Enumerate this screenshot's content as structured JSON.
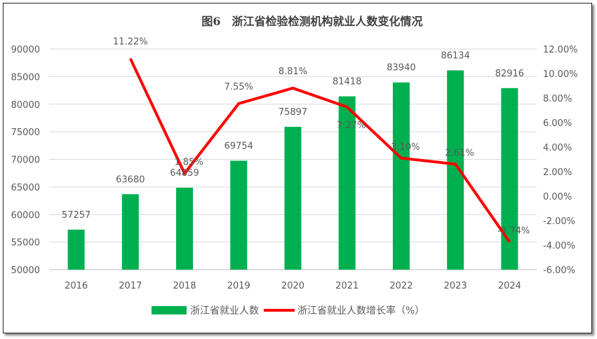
{
  "chart_data": {
    "type": "bar+line",
    "title": "图6　浙江省检验检测机构就业人数变化情况",
    "categories": [
      "2016",
      "2017",
      "2018",
      "2019",
      "2020",
      "2021",
      "2022",
      "2023",
      "2024"
    ],
    "series": [
      {
        "name": "浙江省就业人数",
        "type": "bar",
        "axis": "left",
        "color": "#00B050",
        "values": [
          57257,
          63680,
          64859,
          69754,
          75897,
          81418,
          83940,
          86134,
          82916
        ],
        "labels": [
          "57257",
          "63680",
          "64859",
          "69754",
          "75897",
          "81418",
          "83940",
          "86134",
          "82916"
        ]
      },
      {
        "name": "浙江省就业人数增长率（%）",
        "type": "line",
        "axis": "right",
        "color": "#FF0000",
        "values": [
          null,
          11.22,
          1.85,
          7.55,
          8.81,
          7.27,
          3.1,
          2.61,
          -3.74
        ],
        "labels": [
          "",
          "11.22%",
          "1.85%",
          "7.55%",
          "8.81%",
          "7.27%",
          "3.10%",
          "2.61%",
          "-3.74%"
        ]
      }
    ],
    "left_axis": {
      "ylim": [
        50000,
        90000
      ],
      "ticks": [
        "50000",
        "55000",
        "60000",
        "65000",
        "70000",
        "75000",
        "80000",
        "85000",
        "90000"
      ]
    },
    "right_axis": {
      "ylim": [
        -6,
        12
      ],
      "ticks": [
        "-6.00%",
        "-4.00%",
        "-2.00%",
        "0.00%",
        "2.00%",
        "4.00%",
        "6.00%",
        "8.00%",
        "10.00%",
        "12.00%"
      ]
    },
    "grid": true,
    "legend": "bottom"
  }
}
